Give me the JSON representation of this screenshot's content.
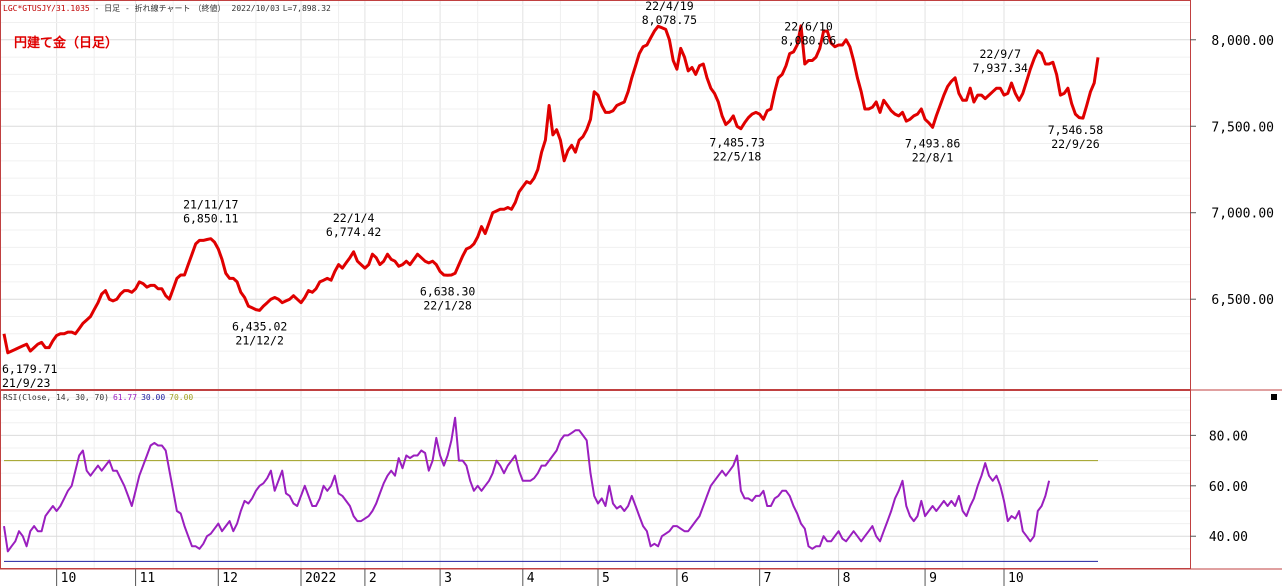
{
  "header": {
    "symbol": "LGC*GTUSJY/31.1035",
    "sep1": " - ",
    "period": "日足",
    "sep2": " - ",
    "chart_kind": "折れ線チャート",
    "mode": "（終値）",
    "date": "2022/10/03",
    "last": "L=7,898.32"
  },
  "title": "円建て金（日足）",
  "rsi_header": {
    "label": "RSI(Close, 14, 30, 70)",
    "value": "61.77",
    "lower": "30.00",
    "upper": "70.00"
  },
  "colors": {
    "price_line": "#e00000",
    "rsi_line": "#9a1fbf",
    "upper_band": "#a0a020",
    "lower_band": "#2020a0",
    "frame": "#c04040",
    "title": "#e00000"
  },
  "chart_data": [
    {
      "type": "line",
      "title": "円建て金（日足）",
      "y_ticks": [
        "6,500.00",
        "7,000.00",
        "7,500.00",
        "8,000.00"
      ],
      "y_tick_values": [
        6500,
        7000,
        7500,
        8000
      ],
      "ylim": [
        5975,
        8230
      ],
      "x_month_labels": [
        "10",
        "11",
        "12",
        "2022",
        "2",
        "3",
        "4",
        "5",
        "6",
        "7",
        "8",
        "9",
        "10"
      ],
      "grid": true,
      "series": [
        {
          "values": [
            6300,
            6190,
            6200,
            6210,
            6220,
            6230,
            6240,
            6200,
            6220,
            6240,
            6250,
            6220,
            6220,
            6260,
            6290,
            6300,
            6300,
            6310,
            6310,
            6300,
            6330,
            6360,
            6380,
            6400,
            6440,
            6480,
            6530,
            6550,
            6500,
            6490,
            6500,
            6530,
            6550,
            6550,
            6540,
            6560,
            6600,
            6590,
            6570,
            6580,
            6580,
            6560,
            6560,
            6520,
            6500,
            6560,
            6620,
            6640,
            6640,
            6700,
            6760,
            6820,
            6840,
            6840,
            6845,
            6850,
            6830,
            6790,
            6730,
            6650,
            6620,
            6620,
            6600,
            6540,
            6510,
            6460,
            6450,
            6440,
            6435,
            6460,
            6480,
            6500,
            6510,
            6500,
            6480,
            6490,
            6500,
            6520,
            6500,
            6480,
            6510,
            6550,
            6540,
            6560,
            6600,
            6610,
            6620,
            6610,
            6660,
            6700,
            6680,
            6710,
            6740,
            6774,
            6720,
            6700,
            6680,
            6700,
            6760,
            6740,
            6700,
            6720,
            6760,
            6730,
            6720,
            6690,
            6700,
            6720,
            6700,
            6730,
            6760,
            6740,
            6720,
            6710,
            6720,
            6700,
            6660,
            6640,
            6638,
            6640,
            6650,
            6700,
            6750,
            6790,
            6800,
            6820,
            6860,
            6920,
            6880,
            6940,
            7000,
            7010,
            7020,
            7020,
            7030,
            7020,
            7060,
            7120,
            7150,
            7180,
            7170,
            7200,
            7250,
            7350,
            7420,
            7620,
            7450,
            7480,
            7420,
            7300,
            7360,
            7390,
            7350,
            7420,
            7440,
            7480,
            7540,
            7700,
            7680,
            7620,
            7580,
            7580,
            7590,
            7620,
            7630,
            7640,
            7700,
            7780,
            7850,
            7920,
            7960,
            7970,
            8010,
            8050,
            8078,
            8070,
            8060,
            8000,
            7880,
            7830,
            7950,
            7900,
            7820,
            7840,
            7800,
            7850,
            7860,
            7780,
            7720,
            7690,
            7640,
            7560,
            7510,
            7530,
            7560,
            7500,
            7486,
            7520,
            7550,
            7570,
            7580,
            7570,
            7540,
            7590,
            7600,
            7700,
            7780,
            7800,
            7850,
            7920,
            7930,
            7970,
            8080,
            7860,
            7880,
            7880,
            7900,
            7950,
            8050,
            8050,
            7980,
            7960,
            7970,
            7970,
            8000,
            7960,
            7880,
            7780,
            7700,
            7600,
            7600,
            7610,
            7640,
            7580,
            7650,
            7620,
            7590,
            7570,
            7560,
            7580,
            7530,
            7540,
            7560,
            7570,
            7600,
            7540,
            7520,
            7494,
            7560,
            7620,
            7680,
            7730,
            7760,
            7780,
            7690,
            7650,
            7650,
            7720,
            7640,
            7680,
            7680,
            7660,
            7680,
            7700,
            7720,
            7720,
            7680,
            7690,
            7750,
            7690,
            7650,
            7690,
            7760,
            7830,
            7890,
            7937,
            7920,
            7860,
            7860,
            7870,
            7800,
            7680,
            7690,
            7720,
            7630,
            7570,
            7550,
            7547,
            7620,
            7700,
            7750,
            7898
          ]
        }
      ],
      "annotations": [
        {
          "date": "21/9/23",
          "value": "6,179.71",
          "pos": "below"
        },
        {
          "date": "21/11/17",
          "value": "6,850.11",
          "pos": "above"
        },
        {
          "date": "21/12/2",
          "value": "6,435.02",
          "pos": "below"
        },
        {
          "date": "22/1/4",
          "value": "6,774.42",
          "pos": "above"
        },
        {
          "date": "22/1/28",
          "value": "6,638.30",
          "pos": "below"
        },
        {
          "date": "22/4/19",
          "value": "8,078.75",
          "pos": "above"
        },
        {
          "date": "22/5/18",
          "value": "7,485.73",
          "pos": "below"
        },
        {
          "date": "22/6/10",
          "value": "8,080.66",
          "pos": "above"
        },
        {
          "date": "22/8/1",
          "value": "7,493.86",
          "pos": "below"
        },
        {
          "date": "22/9/7",
          "value": "7,937.34",
          "pos": "above"
        },
        {
          "date": "22/9/26",
          "value": "7,546.58",
          "pos": "below"
        }
      ]
    },
    {
      "type": "line",
      "title": "RSI(Close, 14, 30, 70)",
      "y_ticks": [
        "40.00",
        "60.00",
        "80.00"
      ],
      "y_tick_values": [
        40,
        60,
        80
      ],
      "ylim": [
        27,
        98
      ],
      "reference_lines": [
        {
          "name": "upper",
          "value": 70
        },
        {
          "name": "lower",
          "value": 30
        }
      ],
      "grid": true,
      "series": [
        {
          "values": [
            44,
            34,
            36,
            38,
            42,
            40,
            36,
            42,
            44,
            42,
            42,
            48,
            50,
            52,
            50,
            52,
            55,
            58,
            60,
            66,
            72,
            74,
            66,
            64,
            66,
            68,
            66,
            68,
            70,
            66,
            66,
            63,
            60,
            56,
            52,
            58,
            64,
            68,
            72,
            76,
            77,
            76,
            76,
            74,
            66,
            58,
            50,
            49,
            44,
            40,
            36,
            36,
            35,
            37,
            40,
            41,
            43,
            45,
            42,
            44,
            46,
            42,
            45,
            50,
            54,
            53,
            55,
            58,
            60,
            61,
            63,
            66,
            58,
            62,
            66,
            57,
            56,
            53,
            52,
            56,
            60,
            56,
            52,
            52,
            55,
            60,
            58,
            60,
            64,
            57,
            56,
            54,
            52,
            48,
            46,
            46,
            47,
            48,
            50,
            53,
            57,
            61,
            64,
            66,
            64,
            71,
            67,
            72,
            71,
            72,
            72,
            74,
            73,
            66,
            70,
            79,
            72,
            68,
            72,
            78,
            87,
            70,
            70,
            68,
            62,
            58,
            60,
            58,
            60,
            62,
            65,
            70,
            68,
            65,
            68,
            70,
            72,
            66,
            62,
            62,
            62,
            63,
            65,
            68,
            68,
            70,
            72,
            74,
            78,
            80,
            80,
            81,
            82,
            82,
            80,
            78,
            65,
            56,
            53,
            55,
            52,
            60,
            53,
            51,
            52,
            50,
            52,
            56,
            52,
            48,
            44,
            42,
            36,
            37,
            36,
            40,
            41,
            42,
            44,
            44,
            43,
            42,
            42,
            44,
            46,
            48,
            52,
            56,
            60,
            62,
            64,
            66,
            64,
            66,
            68,
            72,
            58,
            55,
            55,
            54,
            56,
            56,
            58,
            52,
            52,
            55,
            56,
            58,
            58,
            56,
            52,
            49,
            45,
            43,
            36,
            35,
            36,
            36,
            40,
            38,
            38,
            40,
            42,
            39,
            38,
            40,
            42,
            40,
            38,
            40,
            42,
            44,
            40,
            38,
            42,
            46,
            50,
            55,
            58,
            62,
            52,
            48,
            46,
            48,
            54,
            48,
            50,
            52,
            50,
            52,
            54,
            52,
            54,
            52,
            56,
            50,
            48,
            52,
            55,
            60,
            64,
            69,
            64,
            62,
            64,
            60,
            54,
            46,
            48,
            47,
            50,
            42,
            40,
            38,
            40,
            50,
            52,
            56,
            62
          ]
        }
      ]
    }
  ]
}
